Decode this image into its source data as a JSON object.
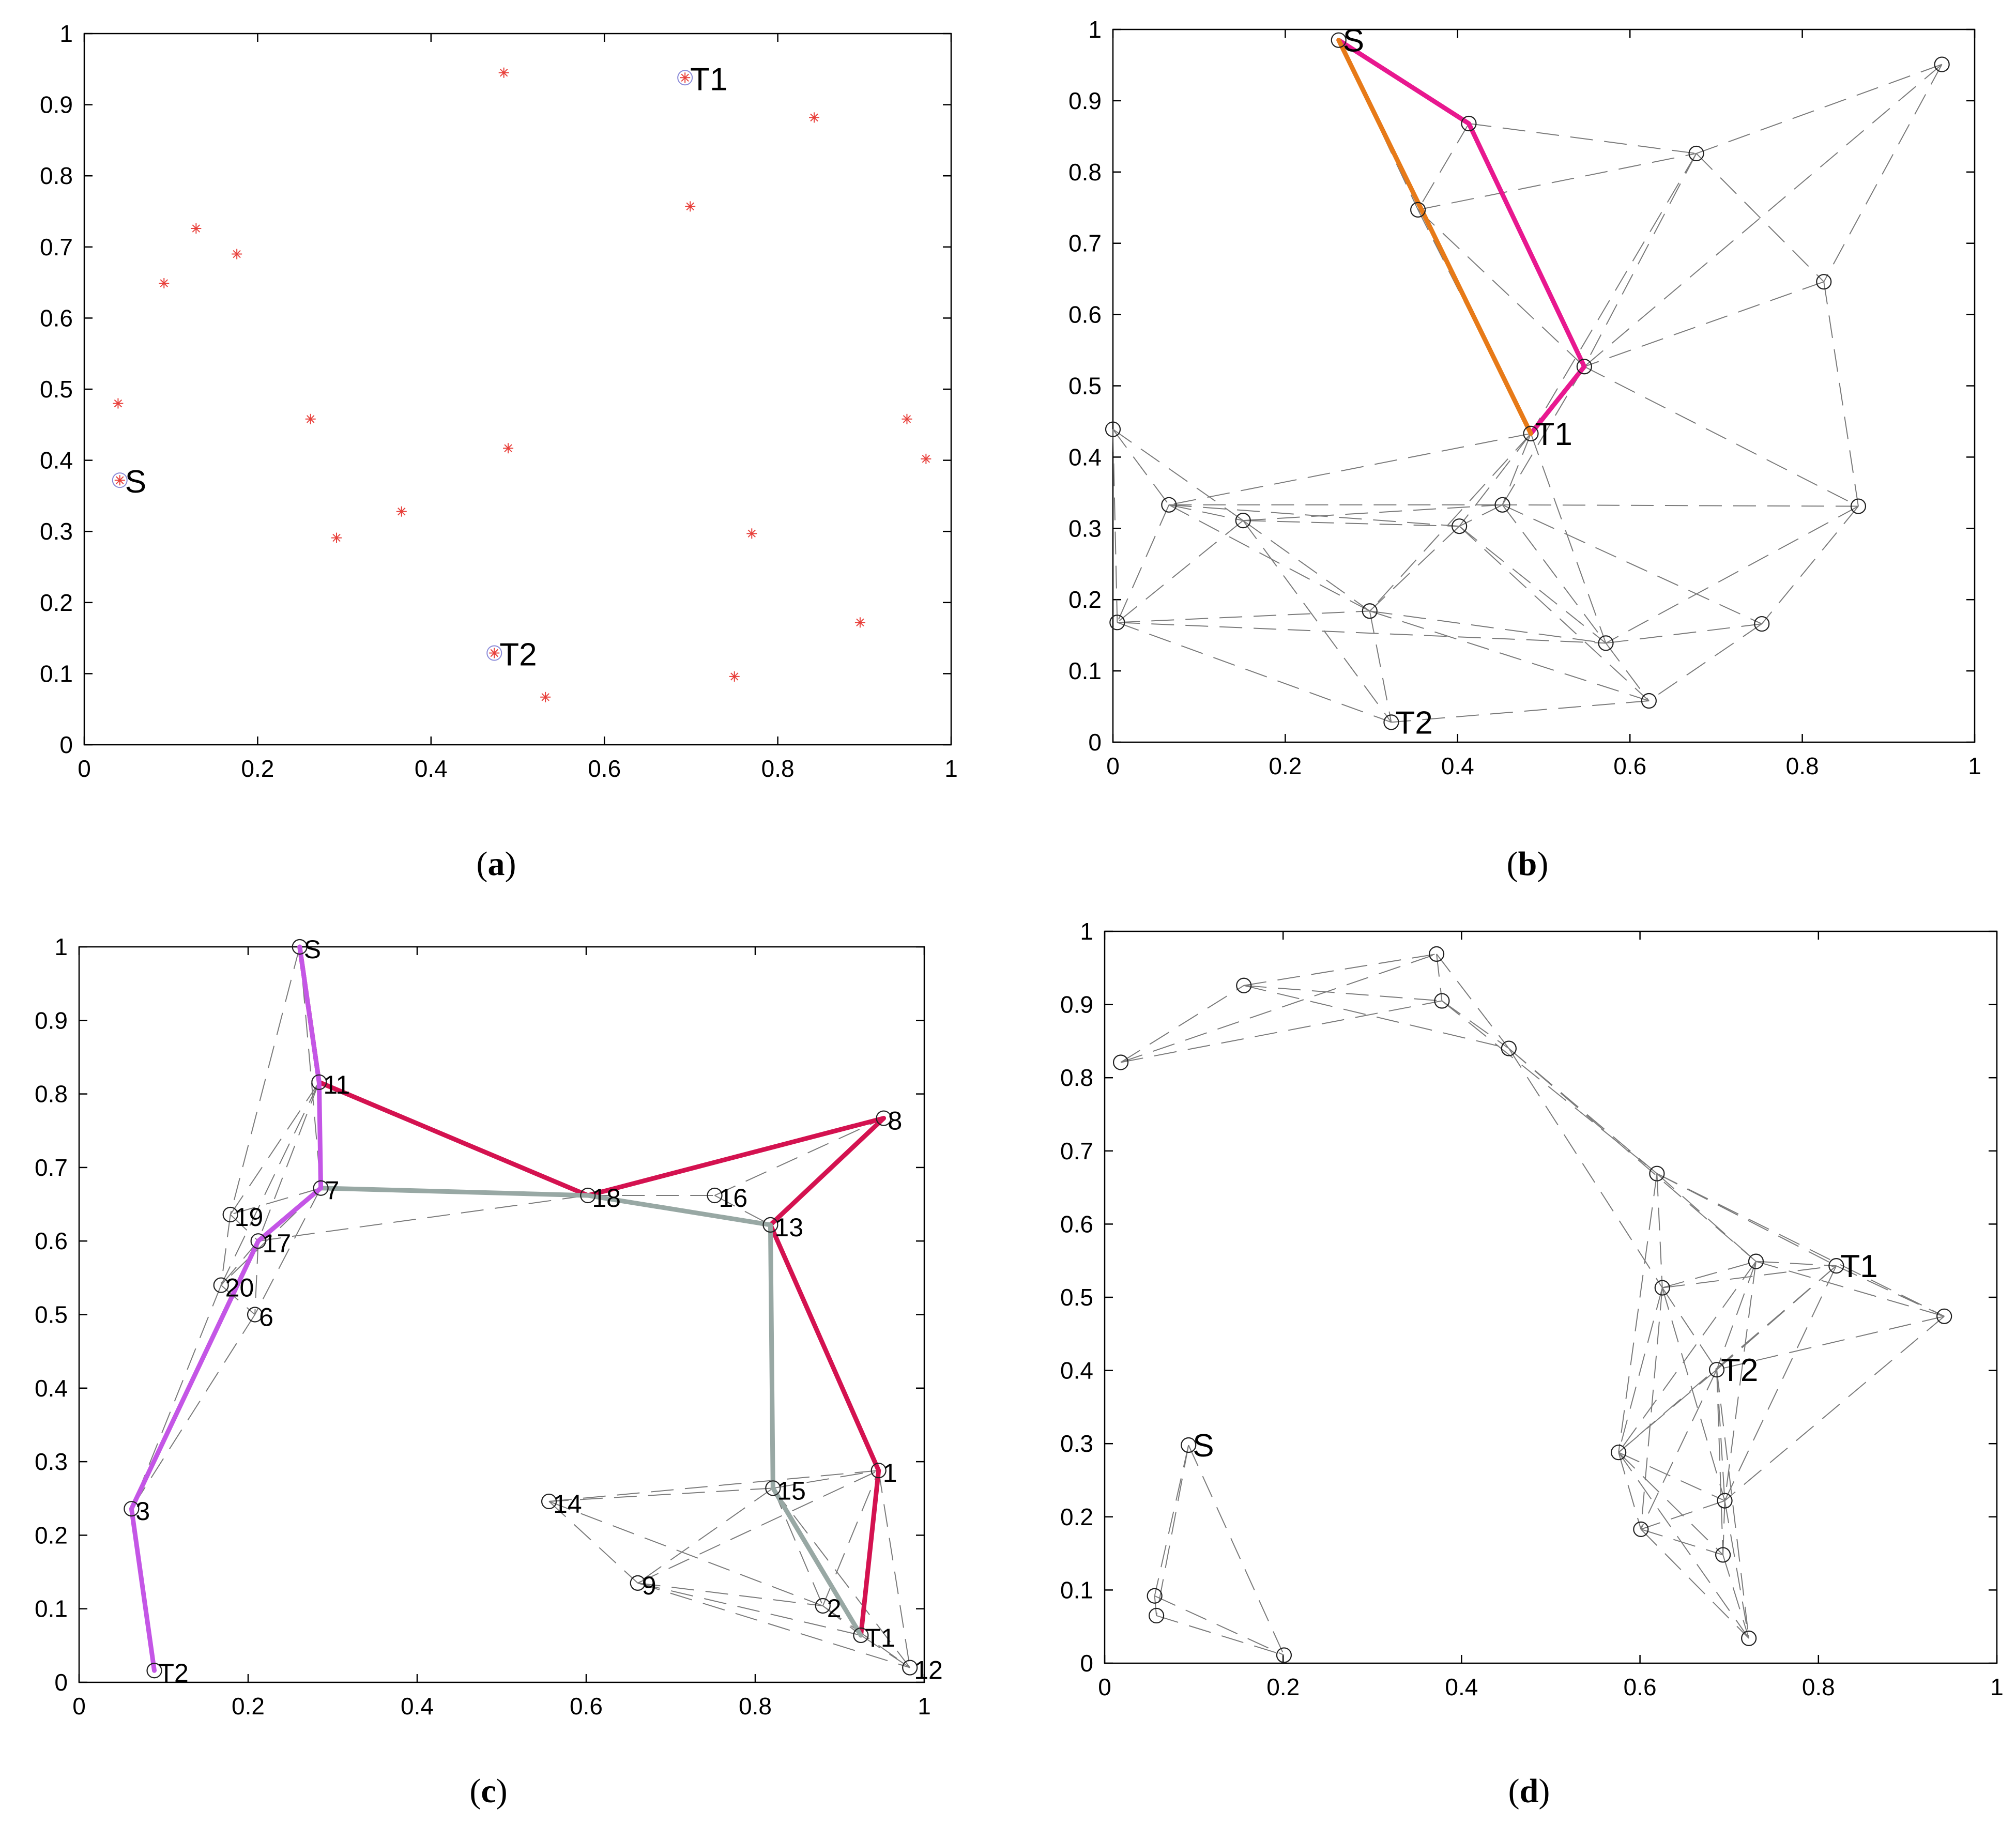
{
  "figure": {
    "caption_open": "(",
    "caption_close": ")"
  },
  "colors": {
    "marker_red": "#e8413c",
    "highlight_circle": "#8a8ad8",
    "node_circle": "#202020",
    "edge_gray": "#7a7a7a",
    "path_magenta": "#e8188f",
    "path_orange": "#e77a18",
    "path_crimson": "#d41250",
    "path_graygreen": "#98a8a4",
    "path_violet": "#c456e6"
  },
  "chart_data": [
    {
      "id": "a",
      "type": "scatter",
      "caption": "a",
      "title": "",
      "xlabel": "",
      "ylabel": "",
      "xlim": [
        0,
        1
      ],
      "ylim": [
        0,
        1
      ],
      "xticks": [
        "0",
        "0.2",
        "0.4",
        "0.6",
        "0.8",
        "1"
      ],
      "yticks": [
        "0",
        "0.1",
        "0.2",
        "0.3",
        "0.4",
        "0.5",
        "0.6",
        "0.7",
        "0.8",
        "0.9",
        "1"
      ],
      "points": [
        {
          "x": 0.484,
          "y": 0.945
        },
        {
          "x": 0.842,
          "y": 0.882
        },
        {
          "x": 0.699,
          "y": 0.757
        },
        {
          "x": 0.129,
          "y": 0.726
        },
        {
          "x": 0.176,
          "y": 0.69
        },
        {
          "x": 0.092,
          "y": 0.649
        },
        {
          "x": 0.039,
          "y": 0.48
        },
        {
          "x": 0.261,
          "y": 0.458
        },
        {
          "x": 0.489,
          "y": 0.417
        },
        {
          "x": 0.949,
          "y": 0.458
        },
        {
          "x": 0.971,
          "y": 0.402
        },
        {
          "x": 0.366,
          "y": 0.328
        },
        {
          "x": 0.291,
          "y": 0.291
        },
        {
          "x": 0.77,
          "y": 0.297
        },
        {
          "x": 0.895,
          "y": 0.172
        },
        {
          "x": 0.75,
          "y": 0.096
        },
        {
          "x": 0.532,
          "y": 0.067
        },
        {
          "x": 0.693,
          "y": 0.938,
          "label": "T1"
        },
        {
          "x": 0.041,
          "y": 0.372,
          "label": "S"
        },
        {
          "x": 0.473,
          "y": 0.129,
          "label": "T2"
        }
      ]
    },
    {
      "id": "b",
      "type": "scatter",
      "caption": "b",
      "title": "",
      "xlabel": "",
      "ylabel": "",
      "xlim": [
        0,
        1
      ],
      "ylim": [
        0,
        1
      ],
      "xticks": [
        "0",
        "0.2",
        "0.4",
        "0.6",
        "0.8",
        "1"
      ],
      "yticks": [
        "0",
        "0.1",
        "0.2",
        "0.3",
        "0.4",
        "0.5",
        "0.6",
        "0.7",
        "0.8",
        "0.9",
        "1"
      ],
      "nodes": [
        {
          "id": "S",
          "x": 0.262,
          "y": 0.985,
          "label": "S"
        },
        {
          "id": "n1",
          "x": 0.413,
          "y": 0.868
        },
        {
          "id": "n2",
          "x": 0.354,
          "y": 0.747
        },
        {
          "id": "n3",
          "x": 0.677,
          "y": 0.826
        },
        {
          "id": "n4",
          "x": 0.962,
          "y": 0.951
        },
        {
          "id": "n5",
          "x": 0.825,
          "y": 0.646
        },
        {
          "id": "n6",
          "x": 0.547,
          "y": 0.527
        },
        {
          "id": "T1",
          "x": 0.485,
          "y": 0.433,
          "label": "T1"
        },
        {
          "id": "n8",
          "x": 0.0,
          "y": 0.439
        },
        {
          "id": "n9",
          "x": 0.065,
          "y": 0.333
        },
        {
          "id": "n10",
          "x": 0.151,
          "y": 0.311
        },
        {
          "id": "n11",
          "x": 0.452,
          "y": 0.333
        },
        {
          "id": "n12",
          "x": 0.402,
          "y": 0.303
        },
        {
          "id": "n13",
          "x": 0.865,
          "y": 0.331
        },
        {
          "id": "n14",
          "x": 0.005,
          "y": 0.168
        },
        {
          "id": "n15",
          "x": 0.298,
          "y": 0.184
        },
        {
          "id": "n16",
          "x": 0.572,
          "y": 0.139
        },
        {
          "id": "n17",
          "x": 0.753,
          "y": 0.166
        },
        {
          "id": "n18",
          "x": 0.622,
          "y": 0.058
        },
        {
          "id": "T2",
          "x": 0.323,
          "y": 0.028,
          "label": "T2"
        }
      ],
      "edges": [
        [
          "S",
          "n2"
        ],
        [
          "S",
          "n1"
        ],
        [
          "n1",
          "n2"
        ],
        [
          "n1",
          "n3"
        ],
        [
          "n1",
          "n6"
        ],
        [
          "n2",
          "n3"
        ],
        [
          "n2",
          "n6"
        ],
        [
          "n2",
          "T1"
        ],
        [
          "n3",
          "n4"
        ],
        [
          "n3",
          "n5"
        ],
        [
          "n3",
          "n6"
        ],
        [
          "n3",
          "T1"
        ],
        [
          "n4",
          "n5"
        ],
        [
          "n4",
          "n6"
        ],
        [
          "n5",
          "n6"
        ],
        [
          "n5",
          "n13"
        ],
        [
          "n6",
          "T1"
        ],
        [
          "n6",
          "n11"
        ],
        [
          "n6",
          "n13"
        ],
        [
          "T1",
          "n11"
        ],
        [
          "T1",
          "n12"
        ],
        [
          "T1",
          "n15"
        ],
        [
          "T1",
          "n16"
        ],
        [
          "T1",
          "n9"
        ],
        [
          "n8",
          "n9"
        ],
        [
          "n8",
          "n14"
        ],
        [
          "n8",
          "n10"
        ],
        [
          "n9",
          "n10"
        ],
        [
          "n9",
          "n14"
        ],
        [
          "n9",
          "n15"
        ],
        [
          "n9",
          "n12"
        ],
        [
          "n9",
          "n11"
        ],
        [
          "n10",
          "n14"
        ],
        [
          "n10",
          "n15"
        ],
        [
          "n10",
          "n12"
        ],
        [
          "n10",
          "n11"
        ],
        [
          "n10",
          "T2"
        ],
        [
          "n11",
          "n12"
        ],
        [
          "n11",
          "n16"
        ],
        [
          "n11",
          "n17"
        ],
        [
          "n12",
          "n15"
        ],
        [
          "n12",
          "n16"
        ],
        [
          "n12",
          "n18"
        ],
        [
          "n13",
          "n16"
        ],
        [
          "n13",
          "n17"
        ],
        [
          "n13",
          "n11"
        ],
        [
          "n14",
          "n15"
        ],
        [
          "n14",
          "T2"
        ],
        [
          "n14",
          "n16"
        ],
        [
          "n15",
          "T2"
        ],
        [
          "n15",
          "n16"
        ],
        [
          "n16",
          "n17"
        ],
        [
          "n16",
          "n18"
        ],
        [
          "n17",
          "n18"
        ],
        [
          "n18",
          "T2"
        ],
        [
          "n15",
          "n18"
        ]
      ],
      "paths": [
        {
          "name": "path-S-T1-via-n1",
          "color": "path_magenta",
          "nodes": [
            "S",
            "n1",
            "n6",
            "T1"
          ]
        },
        {
          "name": "path-S-T1-direct",
          "color": "path_orange",
          "nodes": [
            "S",
            "T1"
          ]
        }
      ]
    },
    {
      "id": "c",
      "type": "scatter",
      "caption": "c",
      "title": "",
      "xlabel": "",
      "ylabel": "",
      "xlim": [
        0,
        1
      ],
      "ylim": [
        0,
        1
      ],
      "xticks": [
        "0",
        "0.2",
        "0.4",
        "0.6",
        "0.8",
        "1"
      ],
      "yticks": [
        "0",
        "0.1",
        "0.2",
        "0.3",
        "0.4",
        "0.5",
        "0.6",
        "0.7",
        "0.8",
        "0.9",
        "1"
      ],
      "nodes": [
        {
          "id": "S",
          "x": 0.261,
          "y": 1.0,
          "label": "S"
        },
        {
          "id": "11",
          "x": 0.284,
          "y": 0.816,
          "label": "11"
        },
        {
          "id": "8",
          "x": 0.952,
          "y": 0.767,
          "label": "8"
        },
        {
          "id": "7",
          "x": 0.286,
          "y": 0.672,
          "label": "7"
        },
        {
          "id": "18",
          "x": 0.602,
          "y": 0.662,
          "label": "18"
        },
        {
          "id": "16",
          "x": 0.752,
          "y": 0.662,
          "label": "16"
        },
        {
          "id": "19",
          "x": 0.179,
          "y": 0.636,
          "label": "19"
        },
        {
          "id": "13",
          "x": 0.818,
          "y": 0.622,
          "label": "13"
        },
        {
          "id": "17",
          "x": 0.212,
          "y": 0.6,
          "label": "17"
        },
        {
          "id": "20",
          "x": 0.168,
          "y": 0.54,
          "label": "20"
        },
        {
          "id": "6",
          "x": 0.208,
          "y": 0.5,
          "label": "6"
        },
        {
          "id": "1",
          "x": 0.946,
          "y": 0.288,
          "label": "1"
        },
        {
          "id": "15",
          "x": 0.821,
          "y": 0.264,
          "label": "15"
        },
        {
          "id": "14",
          "x": 0.556,
          "y": 0.246,
          "label": "14"
        },
        {
          "id": "3",
          "x": 0.062,
          "y": 0.236,
          "label": "3"
        },
        {
          "id": "9",
          "x": 0.661,
          "y": 0.135,
          "label": "9"
        },
        {
          "id": "2",
          "x": 0.88,
          "y": 0.104,
          "label": "2"
        },
        {
          "id": "T1",
          "x": 0.925,
          "y": 0.064,
          "label": "T1"
        },
        {
          "id": "12",
          "x": 0.983,
          "y": 0.02,
          "label": "12"
        },
        {
          "id": "T2",
          "x": 0.089,
          "y": 0.016,
          "label": "T2"
        }
      ],
      "edges": [
        [
          "S",
          "11"
        ],
        [
          "S",
          "7"
        ],
        [
          "S",
          "19"
        ],
        [
          "11",
          "7"
        ],
        [
          "11",
          "19"
        ],
        [
          "11",
          "17"
        ],
        [
          "11",
          "20"
        ],
        [
          "7",
          "19"
        ],
        [
          "7",
          "17"
        ],
        [
          "7",
          "20"
        ],
        [
          "7",
          "6"
        ],
        [
          "19",
          "17"
        ],
        [
          "19",
          "20"
        ],
        [
          "17",
          "20"
        ],
        [
          "17",
          "6"
        ],
        [
          "20",
          "6"
        ],
        [
          "20",
          "3"
        ],
        [
          "6",
          "3"
        ],
        [
          "17",
          "3"
        ],
        [
          "7",
          "18"
        ],
        [
          "18",
          "16"
        ],
        [
          "18",
          "13"
        ],
        [
          "16",
          "13"
        ],
        [
          "16",
          "8"
        ],
        [
          "17",
          "18"
        ],
        [
          "13",
          "8"
        ],
        [
          "13",
          "15"
        ],
        [
          "15",
          "14"
        ],
        [
          "15",
          "9"
        ],
        [
          "15",
          "2"
        ],
        [
          "15",
          "1"
        ],
        [
          "15",
          "T1"
        ],
        [
          "15",
          "12"
        ],
        [
          "14",
          "9"
        ],
        [
          "14",
          "2"
        ],
        [
          "14",
          "1"
        ],
        [
          "9",
          "2"
        ],
        [
          "9",
          "T1"
        ],
        [
          "9",
          "12"
        ],
        [
          "9",
          "1"
        ],
        [
          "2",
          "T1"
        ],
        [
          "2",
          "12"
        ],
        [
          "2",
          "1"
        ],
        [
          "1",
          "T1"
        ],
        [
          "1",
          "12"
        ],
        [
          "T1",
          "12"
        ]
      ],
      "paths": [
        {
          "name": "path-S-T1-crimson",
          "color": "path_crimson",
          "nodes": [
            "S",
            "11",
            "18",
            "8",
            "13",
            "1",
            "T1"
          ]
        },
        {
          "name": "path-S-T1-graygreen",
          "color": "path_graygreen",
          "nodes": [
            "7",
            "18",
            "13",
            "15",
            "T1"
          ]
        },
        {
          "name": "path-S-T2-violet",
          "color": "path_violet",
          "nodes": [
            "S",
            "11",
            "7",
            "17",
            "3",
            "T2"
          ]
        }
      ]
    },
    {
      "id": "d",
      "type": "scatter",
      "caption": "d",
      "title": "",
      "xlabel": "",
      "ylabel": "",
      "xlim": [
        0,
        1
      ],
      "ylim": [
        0,
        1
      ],
      "xticks": [
        "0",
        "0.2",
        "0.4",
        "0.6",
        "0.8",
        "1"
      ],
      "yticks": [
        "0",
        "0.1",
        "0.2",
        "0.3",
        "0.4",
        "0.5",
        "0.6",
        "0.7",
        "0.8",
        "0.9",
        "1"
      ],
      "nodes": [
        {
          "id": "a1",
          "x": 0.372,
          "y": 0.969
        },
        {
          "id": "a2",
          "x": 0.156,
          "y": 0.926
        },
        {
          "id": "a3",
          "x": 0.378,
          "y": 0.905
        },
        {
          "id": "a4",
          "x": 0.453,
          "y": 0.84
        },
        {
          "id": "a5",
          "x": 0.018,
          "y": 0.821
        },
        {
          "id": "a6",
          "x": 0.619,
          "y": 0.669
        },
        {
          "id": "a7",
          "x": 0.73,
          "y": 0.549
        },
        {
          "id": "T1",
          "x": 0.82,
          "y": 0.543,
          "label": "T1"
        },
        {
          "id": "a9",
          "x": 0.625,
          "y": 0.513
        },
        {
          "id": "a10",
          "x": 0.941,
          "y": 0.474
        },
        {
          "id": "T2",
          "x": 0.686,
          "y": 0.401,
          "label": "T2"
        },
        {
          "id": "S",
          "x": 0.094,
          "y": 0.298,
          "label": "S"
        },
        {
          "id": "a13",
          "x": 0.576,
          "y": 0.288
        },
        {
          "id": "a14",
          "x": 0.695,
          "y": 0.222
        },
        {
          "id": "a15",
          "x": 0.601,
          "y": 0.183
        },
        {
          "id": "a16",
          "x": 0.693,
          "y": 0.148
        },
        {
          "id": "a17",
          "x": 0.056,
          "y": 0.092
        },
        {
          "id": "a18",
          "x": 0.058,
          "y": 0.065
        },
        {
          "id": "a19",
          "x": 0.722,
          "y": 0.034
        },
        {
          "id": "a20",
          "x": 0.201,
          "y": 0.011
        }
      ],
      "edges": [
        [
          "a5",
          "a2"
        ],
        [
          "a5",
          "a1"
        ],
        [
          "a5",
          "a3"
        ],
        [
          "a2",
          "a1"
        ],
        [
          "a2",
          "a3"
        ],
        [
          "a2",
          "a4"
        ],
        [
          "a1",
          "a3"
        ],
        [
          "a1",
          "a4"
        ],
        [
          "a3",
          "a4"
        ],
        [
          "a3",
          "a6"
        ],
        [
          "a4",
          "a6"
        ],
        [
          "a4",
          "a9"
        ],
        [
          "a4",
          "a7"
        ],
        [
          "a6",
          "a9"
        ],
        [
          "a6",
          "a7"
        ],
        [
          "a6",
          "T1"
        ],
        [
          "a6",
          "a10"
        ],
        [
          "a6",
          "a13"
        ],
        [
          "a9",
          "a7"
        ],
        [
          "a9",
          "T1"
        ],
        [
          "a9",
          "T2"
        ],
        [
          "a9",
          "a13"
        ],
        [
          "a9",
          "a14"
        ],
        [
          "a9",
          "a15"
        ],
        [
          "a7",
          "T1"
        ],
        [
          "a7",
          "a10"
        ],
        [
          "a7",
          "T2"
        ],
        [
          "a7",
          "a13"
        ],
        [
          "a7",
          "a14"
        ],
        [
          "T1",
          "a10"
        ],
        [
          "T1",
          "T2"
        ],
        [
          "T1",
          "a13"
        ],
        [
          "T1",
          "a14"
        ],
        [
          "a10",
          "T2"
        ],
        [
          "a10",
          "a14"
        ],
        [
          "T2",
          "a13"
        ],
        [
          "T2",
          "a14"
        ],
        [
          "T2",
          "a15"
        ],
        [
          "T2",
          "a16"
        ],
        [
          "T2",
          "a19"
        ],
        [
          "a13",
          "a14"
        ],
        [
          "a13",
          "a15"
        ],
        [
          "a13",
          "a16"
        ],
        [
          "a13",
          "a19"
        ],
        [
          "a14",
          "a15"
        ],
        [
          "a14",
          "a16"
        ],
        [
          "a14",
          "a19"
        ],
        [
          "a15",
          "a16"
        ],
        [
          "a15",
          "a19"
        ],
        [
          "a16",
          "a19"
        ],
        [
          "S",
          "a17"
        ],
        [
          "S",
          "a18"
        ],
        [
          "S",
          "a20"
        ],
        [
          "a17",
          "a18"
        ],
        [
          "a17",
          "a20"
        ],
        [
          "a18",
          "a20"
        ]
      ]
    }
  ]
}
